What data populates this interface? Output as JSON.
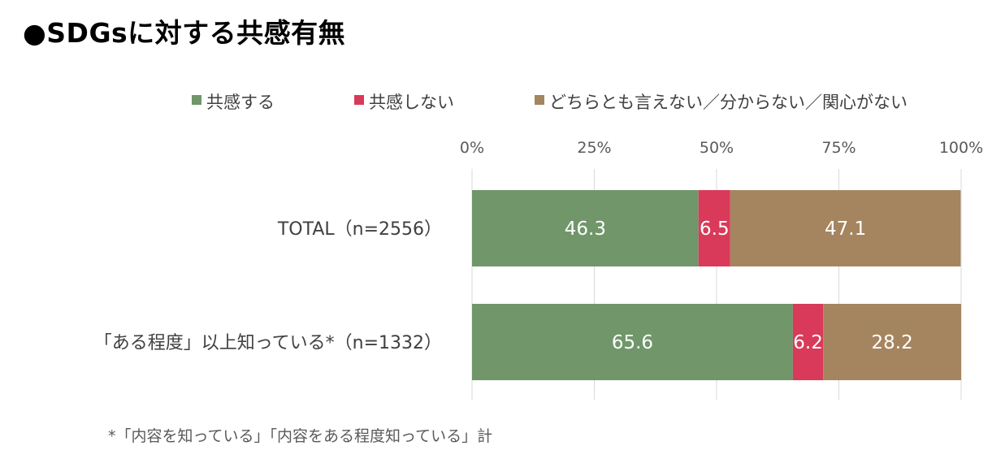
{
  "title": "●SDGsに対する共感有無",
  "note": "*「内容を知っている」「内容をある程度知っている」計",
  "chart_data": {
    "type": "bar",
    "orientation": "horizontal",
    "stacked": true,
    "categories": [
      "TOTAL（n=2556）",
      "「ある程度」以上知っている*（n=1332）"
    ],
    "series": [
      {
        "name": "共感する",
        "values": [
          46.3,
          65.6
        ],
        "labels": [
          "46.3",
          "65.6"
        ],
        "color": "#70966a"
      },
      {
        "name": "共感しない",
        "values": [
          6.5,
          6.2
        ],
        "labels": [
          "6.5",
          "6.2"
        ],
        "color": "#d93a5a"
      },
      {
        "name": "どちらとも言えない／分からない／関心がない",
        "values": [
          47.1,
          28.2
        ],
        "labels": [
          "47.1",
          "28.2"
        ],
        "color": "#a5855f"
      }
    ],
    "xlim": [
      0,
      100
    ],
    "xticks": [
      "0%",
      "25%",
      "50%",
      "75%",
      "100%"
    ],
    "tick_values": [
      0,
      25,
      50,
      75,
      100
    ],
    "grid": true,
    "legend_position": "top"
  }
}
